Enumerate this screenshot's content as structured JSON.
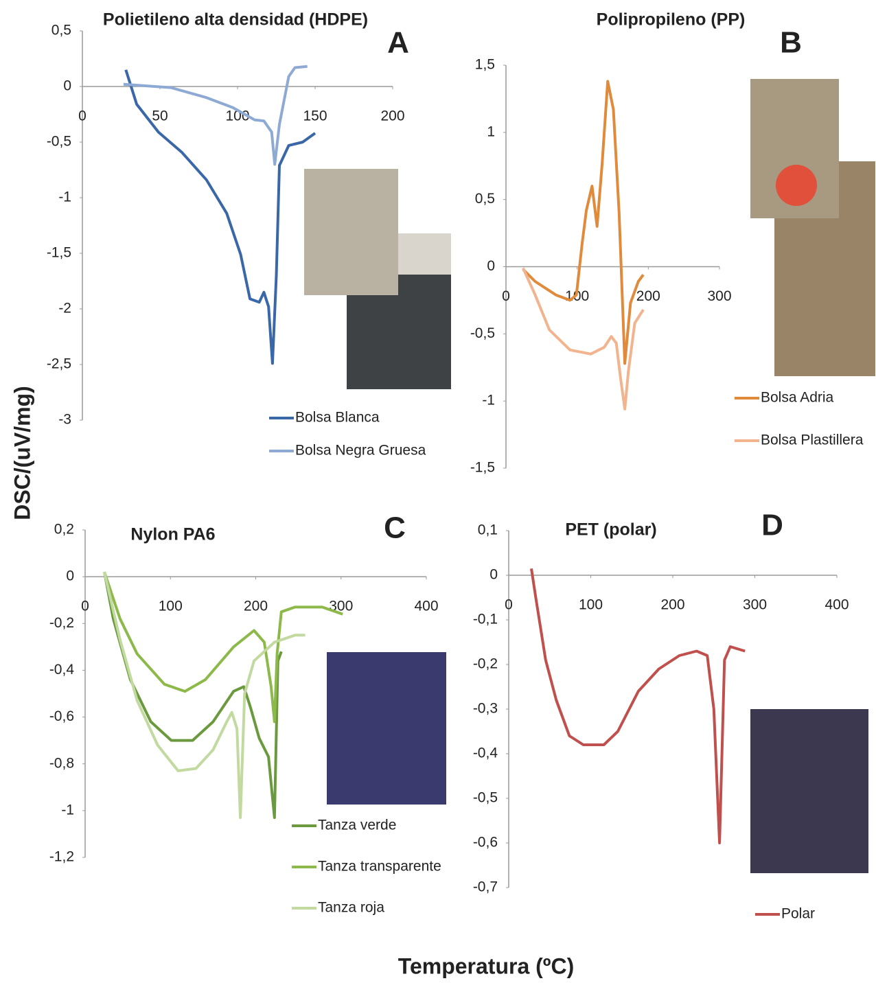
{
  "figure": {
    "ylabel": "DSC/(uV/mg)",
    "xlabel": "Temperatura (ºC)"
  },
  "chart_data": [
    {
      "type": "line",
      "title": "Polietileno alta densidad (HDPE)",
      "panel": "A",
      "legend": "lower-right",
      "xlim": [
        0,
        200
      ],
      "xticks": [
        0,
        50,
        100,
        150,
        200
      ],
      "ylim": [
        -3,
        0.5
      ],
      "yticks": [
        {
          "value": 0.5,
          "label": "0,5"
        },
        0,
        {
          "value": -0.5,
          "label": "-0,5"
        },
        -1,
        {
          "value": -1.5,
          "label": "-1,5"
        },
        -2,
        {
          "value": -2.5,
          "label": "-2,5"
        },
        -3
      ],
      "series": [
        {
          "name": "Bolsa Blanca",
          "color": "#3a67a8",
          "x": [
            28,
            35,
            49,
            64,
            80,
            93,
            102,
            108,
            114,
            117,
            120,
            122.5,
            125,
            127,
            133,
            142,
            150
          ],
          "values": [
            0.15,
            -0.16,
            -0.41,
            -0.59,
            -0.84,
            -1.14,
            -1.51,
            -1.91,
            -1.94,
            -1.85,
            -1.98,
            -2.49,
            -1.7,
            -0.71,
            -0.53,
            -0.5,
            -0.42
          ]
        },
        {
          "name": "Bolsa Negra Gruesa",
          "color": "#8eaad4",
          "x": [
            26.5,
            57,
            80,
            97,
            111,
            117,
            122,
            124,
            127,
            133,
            137,
            145
          ],
          "values": [
            0.02,
            -0.01,
            -0.1,
            -0.19,
            -0.3,
            -0.31,
            -0.41,
            -0.7,
            -0.34,
            0.09,
            0.17,
            0.18
          ]
        }
      ]
    },
    {
      "type": "line",
      "title": "Polipropileno (PP)",
      "panel": "B",
      "legend": "right",
      "xlim": [
        0,
        300
      ],
      "xticks": [
        0,
        100,
        200,
        300
      ],
      "ylim": [
        -1.5,
        1.5
      ],
      "yticks": [
        {
          "value": 1.5,
          "label": "1,5"
        },
        1,
        {
          "value": 0.5,
          "label": "0,5"
        },
        0,
        {
          "value": -0.5,
          "label": "-0,5"
        },
        -1,
        {
          "value": -1.5,
          "label": "-1,5"
        }
      ],
      "series": [
        {
          "name": "Bolsa Adria",
          "color": "#e08a3c",
          "x": [
            24,
            41,
            70,
            90,
            99,
            107,
            113,
            121,
            128,
            135,
            143,
            151,
            159,
            167,
            175,
            186,
            193
          ],
          "values": [
            -0.02,
            -0.11,
            -0.21,
            -0.25,
            -0.21,
            0.17,
            0.42,
            0.6,
            0.3,
            0.76,
            1.38,
            1.17,
            0.4,
            -0.72,
            -0.27,
            -0.11,
            -0.06
          ]
        },
        {
          "name": "Bolsa Plastillera",
          "color": "#f2b48e",
          "x": [
            24,
            41,
            61,
            90,
            119,
            138,
            148,
            155,
            161,
            167,
            172,
            181,
            193
          ],
          "values": [
            -0.01,
            -0.21,
            -0.47,
            -0.62,
            -0.65,
            -0.6,
            -0.52,
            -0.57,
            -0.83,
            -1.06,
            -0.78,
            -0.42,
            -0.32
          ]
        }
      ]
    },
    {
      "type": "line",
      "title": "Nylon PA6",
      "panel": "C",
      "legend": "lower-right",
      "xlim": [
        0,
        400
      ],
      "xticks": [
        0,
        100,
        200,
        300,
        400
      ],
      "ylim": [
        -1.2,
        0.2
      ],
      "yticks": [
        {
          "value": 0.2,
          "label": "0,2"
        },
        0,
        {
          "value": -0.2,
          "label": "-0,2"
        },
        {
          "value": -0.4,
          "label": "-0,4"
        },
        {
          "value": -0.6,
          "label": "-0,6"
        },
        {
          "value": -0.8,
          "label": "-0,8"
        },
        -1,
        {
          "value": -1.2,
          "label": "-1,2"
        }
      ],
      "series": [
        {
          "name": "Tanza verde",
          "color": "#6b9a3e",
          "x": [
            22.5,
            33,
            53,
            77,
            101,
            126,
            150,
            174,
            186,
            194,
            204,
            215,
            222,
            226,
            230
          ],
          "values": [
            0.02,
            -0.18,
            -0.44,
            -0.62,
            -0.7,
            -0.7,
            -0.62,
            -0.49,
            -0.47,
            -0.56,
            -0.69,
            -0.77,
            -1.03,
            -0.36,
            -0.32
          ]
        },
        {
          "name": "Tanza transparente",
          "color": "#8db84a",
          "x": [
            22.5,
            41,
            61,
            93,
            117,
            141,
            174,
            198,
            210,
            218,
            222,
            225,
            230,
            246,
            278,
            302
          ],
          "values": [
            0.02,
            -0.18,
            -0.33,
            -0.46,
            -0.49,
            -0.44,
            -0.3,
            -0.23,
            -0.28,
            -0.47,
            -0.62,
            -0.33,
            -0.15,
            -0.13,
            -0.13,
            -0.16
          ]
        },
        {
          "name": "Tanza roja",
          "color": "#c2d9a0",
          "x": [
            22.5,
            41,
            61,
            85,
            109,
            130,
            150,
            166,
            172,
            178,
            182,
            187,
            198,
            222,
            246,
            258
          ],
          "values": [
            0.02,
            -0.27,
            -0.53,
            -0.72,
            -0.83,
            -0.82,
            -0.74,
            -0.62,
            -0.58,
            -0.65,
            -1.03,
            -0.5,
            -0.36,
            -0.28,
            -0.25,
            -0.25
          ]
        }
      ]
    },
    {
      "type": "line",
      "title": "PET (polar)",
      "panel": "D",
      "legend": "lower-right",
      "xlim": [
        0,
        400
      ],
      "xticks": [
        0,
        100,
        200,
        300,
        400
      ],
      "ylim": [
        -0.7,
        0.1
      ],
      "yticks": [
        {
          "value": 0.1,
          "label": "0,1"
        },
        0,
        {
          "value": -0.1,
          "label": "-0,1"
        },
        {
          "value": -0.2,
          "label": "-0,2"
        },
        {
          "value": -0.3,
          "label": "-0,3"
        },
        {
          "value": -0.4,
          "label": "-0,4"
        },
        {
          "value": -0.5,
          "label": "-0,5"
        },
        {
          "value": -0.6,
          "label": "-0,6"
        },
        {
          "value": -0.7,
          "label": "-0,7"
        }
      ],
      "series": [
        {
          "name": "Polar",
          "color": "#c0504d",
          "x": [
            27.6,
            33,
            45,
            58,
            74,
            91,
            116,
            133,
            158,
            183,
            208,
            229,
            242,
            250,
            257,
            263,
            270,
            288
          ],
          "values": [
            0.015,
            -0.05,
            -0.19,
            -0.28,
            -0.36,
            -0.38,
            -0.38,
            -0.35,
            -0.26,
            -0.21,
            -0.18,
            -0.17,
            -0.18,
            -0.3,
            -0.6,
            -0.19,
            -0.16,
            -0.17
          ]
        }
      ]
    }
  ]
}
